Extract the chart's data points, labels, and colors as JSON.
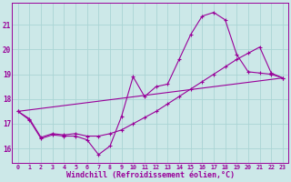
{
  "background_color": "#cce8e8",
  "grid_color": "#aad4d4",
  "line_color": "#990099",
  "xlabel": "Windchill (Refroidissement éolien,°C)",
  "xlabel_fontsize": 6.0,
  "xtick_labels": [
    "0",
    "1",
    "2",
    "3",
    "4",
    "5",
    "6",
    "7",
    "8",
    "9",
    "10",
    "11",
    "12",
    "13",
    "14",
    "15",
    "16",
    "17",
    "18",
    "19",
    "20",
    "21",
    "22",
    "23"
  ],
  "yticks": [
    16,
    17,
    18,
    19,
    20,
    21
  ],
  "ylim": [
    15.4,
    21.9
  ],
  "xlim": [
    -0.5,
    23.5
  ],
  "line1_x": [
    0,
    1,
    2,
    3,
    4,
    5,
    6,
    7,
    8,
    9,
    10,
    11,
    12,
    13,
    14,
    15,
    16,
    17,
    18,
    19,
    20,
    21,
    22,
    23
  ],
  "line1_y": [
    17.5,
    17.15,
    16.4,
    16.55,
    16.5,
    16.5,
    16.35,
    15.75,
    16.1,
    17.3,
    18.9,
    18.1,
    18.5,
    18.6,
    19.6,
    20.6,
    21.35,
    21.5,
    21.2,
    19.8,
    19.1,
    19.05,
    19.0,
    18.85
  ],
  "line2_x": [
    0,
    1,
    2,
    3,
    4,
    5,
    6,
    7,
    8,
    9,
    10,
    11,
    12,
    13,
    14,
    15,
    16,
    17,
    18,
    19,
    20,
    21,
    22,
    23
  ],
  "line2_y": [
    17.5,
    17.2,
    16.45,
    16.6,
    16.55,
    16.6,
    16.5,
    16.5,
    16.6,
    16.75,
    17.0,
    17.25,
    17.5,
    17.8,
    18.1,
    18.4,
    18.7,
    19.0,
    19.3,
    19.6,
    19.85,
    20.1,
    19.05,
    18.85
  ],
  "line3_x": [
    0,
    23
  ],
  "line3_y": [
    17.5,
    18.85
  ]
}
